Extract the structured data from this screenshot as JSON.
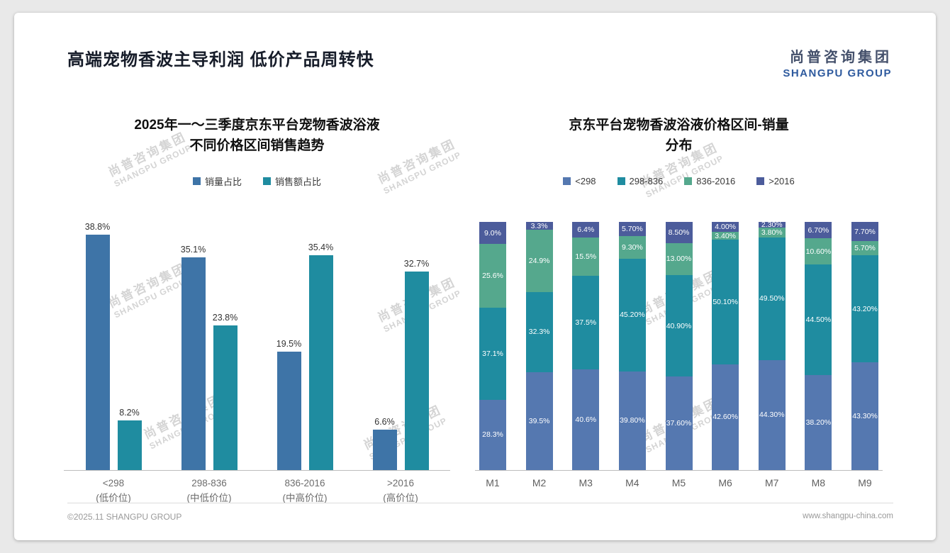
{
  "header": {
    "title": "高端宠物香波主导利润 低价产品周转快",
    "logo": {
      "cn": "尚普咨询集团",
      "en": "SHANGPU GROUP"
    }
  },
  "watermark": {
    "cn": "尚普咨询集团",
    "en": "SHANGPU GROUP"
  },
  "footer": {
    "copyright": "©2025.11 SHANGPU GROUP",
    "website": "www.shangpu-china.com"
  },
  "chart_data": [
    {
      "type": "bar",
      "title": "2025年一～三季度京东平台宠物香波浴液 不同价格区间销售趋势",
      "title_lines": [
        "2025年一～三季度京东平台宠物香波浴液",
        "不同价格区间销售趋势"
      ],
      "categories": [
        "<298",
        "298-836",
        "836-2016",
        ">2016"
      ],
      "category_sublabels": [
        "(低价位)",
        "(中低价位)",
        "(中高价位)",
        "(高价位)"
      ],
      "series": [
        {
          "name": "销量占比",
          "color": "#3e74a7",
          "values": [
            38.8,
            35.1,
            19.5,
            6.6
          ],
          "labels": [
            "38.8%",
            "35.1%",
            "19.5%",
            "6.6%"
          ]
        },
        {
          "name": "销售额占比",
          "color": "#1f8ca0",
          "values": [
            8.2,
            23.8,
            35.4,
            32.7
          ],
          "labels": [
            "8.2%",
            "23.8%",
            "35.4%",
            "32.7%"
          ]
        }
      ],
      "ylim": [
        0,
        40
      ],
      "grid": false,
      "legend_position": "top",
      "unit": "percent"
    },
    {
      "type": "stacked-bar",
      "title": "京东平台宠物香波浴液价格区间-销量分布",
      "title_lines": [
        "京东平台宠物香波浴液价格区间-销量",
        "分布"
      ],
      "categories": [
        "M1",
        "M2",
        "M3",
        "M4",
        "M5",
        "M6",
        "M7",
        "M8",
        "M9"
      ],
      "series": [
        {
          "name": "<298",
          "color": "#5578b0",
          "values": [
            28.3,
            39.5,
            40.6,
            39.8,
            37.6,
            42.6,
            44.3,
            38.2,
            43.3
          ],
          "labels": [
            "28.3%",
            "39.5%",
            "40.6%",
            "39.80%",
            "37.60%",
            "42.60%",
            "44.30%",
            "38.20%",
            "43.30%"
          ]
        },
        {
          "name": "298-836",
          "color": "#1f8ca0",
          "values": [
            37.1,
            32.3,
            37.5,
            45.2,
            40.9,
            50.1,
            49.5,
            44.5,
            43.2
          ],
          "labels": [
            "37.1%",
            "32.3%",
            "37.5%",
            "45.20%",
            "40.90%",
            "50.10%",
            "49.50%",
            "44.50%",
            "43.20%"
          ]
        },
        {
          "name": "836-2016",
          "color": "#55a88d",
          "values": [
            25.6,
            24.9,
            15.5,
            9.3,
            13.0,
            3.4,
            3.8,
            10.6,
            5.7
          ],
          "labels": [
            "25.6%",
            "24.9%",
            "15.5%",
            "9.30%",
            "13.00%",
            "3.40%",
            "3.80%",
            "10.60%",
            "5.70%"
          ]
        },
        {
          "name": ">2016",
          "color": "#4c5c9b",
          "values": [
            9.0,
            3.3,
            6.4,
            5.7,
            8.5,
            4.0,
            2.3,
            6.7,
            7.7
          ],
          "labels": [
            "9.0%",
            "3.3%",
            "6.4%",
            "5.70%",
            "8.50%",
            "4.00%",
            "2.30%",
            "6.70%",
            "7.70%"
          ]
        }
      ],
      "ylim": [
        0,
        100
      ],
      "grid": false,
      "legend_position": "top",
      "unit": "percent"
    }
  ]
}
